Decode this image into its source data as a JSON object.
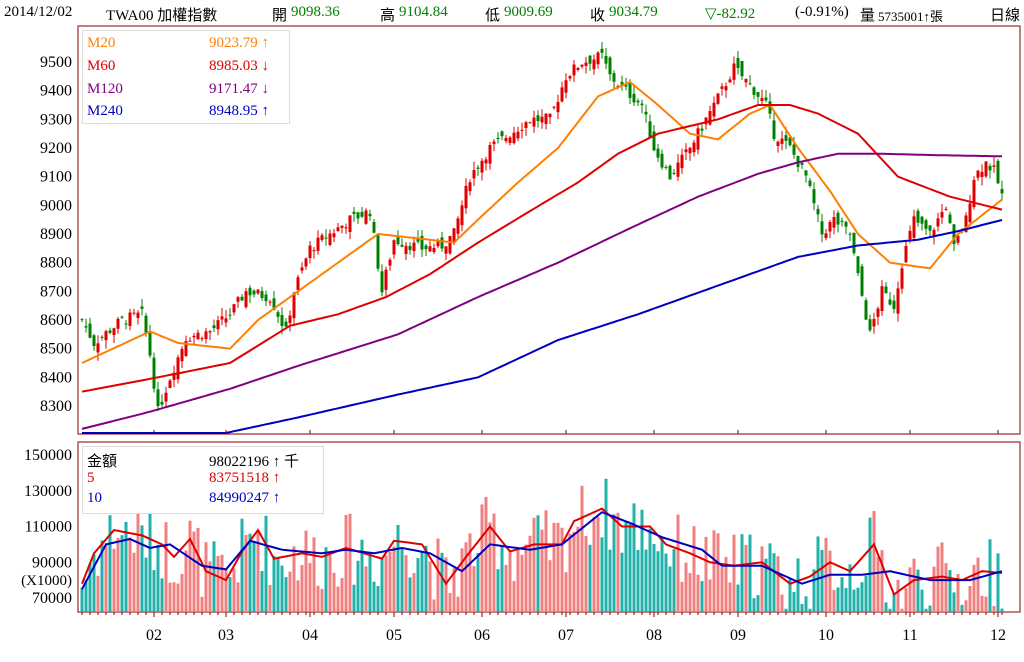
{
  "header": {
    "date": "2014/12/02",
    "symbol": "TWA00 加權指數",
    "open_label": "開",
    "open": "9098.36",
    "high_label": "高",
    "high": "9104.84",
    "low_label": "低",
    "low": "9009.69",
    "close_label": "收",
    "close": "9034.79",
    "change": "▽-82.92",
    "change_pct": "(-0.91%)",
    "volume_label": "量",
    "volume": "5735001↑張",
    "period": "日線"
  },
  "price_legend": [
    {
      "name": "M20",
      "value": "9023.79 ↑",
      "color": "#ff8000"
    },
    {
      "name": "M60",
      "value": "8985.03 ↓",
      "color": "#e00000"
    },
    {
      "name": "M120",
      "value": "9171.47 ↓",
      "color": "#800080"
    },
    {
      "name": "M240",
      "value": "8948.95 ↑",
      "color": "#0000c0"
    }
  ],
  "volume_legend": [
    {
      "name": "金額",
      "value": "98022196 ↑ 千",
      "color": "#000000"
    },
    {
      "name": "5",
      "value": "83751518 ↑",
      "color": "#e00000"
    },
    {
      "name": "10",
      "value": "84990247 ↑",
      "color": "#0000c0"
    }
  ],
  "chart_data": [
    {
      "type": "candlestick",
      "title": "TWA00 加權指數 日線",
      "days": 231,
      "ylim": [
        8200,
        9620
      ],
      "yticks": [
        "9500",
        "9400",
        "9300",
        "9200",
        "9100",
        "9000",
        "8900",
        "8800",
        "8700",
        "8600",
        "8500",
        "8400",
        "8300"
      ],
      "close_keypoints": [
        [
          0,
          8600
        ],
        [
          3,
          8520
        ],
        [
          10,
          8600
        ],
        [
          15,
          8620
        ],
        [
          17,
          8480
        ],
        [
          19,
          8280
        ],
        [
          22,
          8400
        ],
        [
          26,
          8540
        ],
        [
          32,
          8560
        ],
        [
          37,
          8620
        ],
        [
          41,
          8700
        ],
        [
          47,
          8680
        ],
        [
          51,
          8560
        ],
        [
          53,
          8700
        ],
        [
          57,
          8850
        ],
        [
          62,
          8900
        ],
        [
          67,
          8950
        ],
        [
          72,
          8980
        ],
        [
          75,
          8700
        ],
        [
          78,
          8880
        ],
        [
          85,
          8850
        ],
        [
          90,
          8860
        ],
        [
          93,
          8900
        ],
        [
          97,
          9100
        ],
        [
          102,
          9200
        ],
        [
          107,
          9250
        ],
        [
          112,
          9300
        ],
        [
          117,
          9300
        ],
        [
          121,
          9450
        ],
        [
          125,
          9500
        ],
        [
          130,
          9520
        ],
        [
          132,
          9450
        ],
        [
          136,
          9400
        ],
        [
          140,
          9350
        ],
        [
          143,
          9200
        ],
        [
          147,
          9100
        ],
        [
          152,
          9200
        ],
        [
          156,
          9300
        ],
        [
          160,
          9400
        ],
        [
          163,
          9480
        ],
        [
          167,
          9420
        ],
        [
          171,
          9350
        ],
        [
          173,
          9250
        ],
        [
          177,
          9200
        ],
        [
          181,
          9100
        ],
        [
          185,
          8900
        ],
        [
          188,
          8950
        ],
        [
          192,
          8900
        ],
        [
          194,
          8750
        ],
        [
          197,
          8550
        ],
        [
          200,
          8700
        ],
        [
          203,
          8650
        ],
        [
          205,
          8800
        ],
        [
          208,
          8950
        ],
        [
          212,
          8900
        ],
        [
          216,
          9000
        ],
        [
          218,
          8850
        ],
        [
          221,
          8950
        ],
        [
          223,
          9100
        ],
        [
          226,
          9150
        ],
        [
          228,
          9120
        ],
        [
          230,
          9035
        ]
      ],
      "series": [
        {
          "name": "M20",
          "color": "#ff8000",
          "points": [
            [
              0,
              8450
            ],
            [
              17,
              8560
            ],
            [
              24,
              8520
            ],
            [
              37,
              8500
            ],
            [
              44,
              8600
            ],
            [
              54,
              8700
            ],
            [
              64,
              8800
            ],
            [
              74,
              8900
            ],
            [
              87,
              8880
            ],
            [
              93,
              8870
            ],
            [
              99,
              8950
            ],
            [
              109,
              9080
            ],
            [
              119,
              9200
            ],
            [
              129,
              9380
            ],
            [
              137,
              9430
            ],
            [
              144,
              9350
            ],
            [
              152,
              9250
            ],
            [
              159,
              9230
            ],
            [
              167,
              9320
            ],
            [
              172,
              9350
            ],
            [
              179,
              9200
            ],
            [
              187,
              9050
            ],
            [
              194,
              8900
            ],
            [
              202,
              8800
            ],
            [
              212,
              8780
            ],
            [
              219,
              8900
            ],
            [
              230,
              9020
            ]
          ]
        },
        {
          "name": "M60",
          "color": "#e00000",
          "points": [
            [
              0,
              8350
            ],
            [
              19,
              8400
            ],
            [
              37,
              8450
            ],
            [
              52,
              8580
            ],
            [
              64,
              8620
            ],
            [
              76,
              8680
            ],
            [
              87,
              8760
            ],
            [
              99,
              8870
            ],
            [
              112,
              8980
            ],
            [
              124,
              9080
            ],
            [
              134,
              9180
            ],
            [
              144,
              9250
            ],
            [
              159,
              9300
            ],
            [
              169,
              9350
            ],
            [
              177,
              9350
            ],
            [
              184,
              9320
            ],
            [
              194,
              9250
            ],
            [
              204,
              9100
            ],
            [
              217,
              9030
            ],
            [
              230,
              8985
            ]
          ]
        },
        {
          "name": "M120",
          "color": "#800080",
          "points": [
            [
              0,
              8220
            ],
            [
              17,
              8280
            ],
            [
              37,
              8360
            ],
            [
              54,
              8440
            ],
            [
              79,
              8550
            ],
            [
              99,
              8680
            ],
            [
              119,
              8800
            ],
            [
              137,
              8920
            ],
            [
              154,
              9030
            ],
            [
              169,
              9110
            ],
            [
              179,
              9150
            ],
            [
              189,
              9180
            ],
            [
              199,
              9180
            ],
            [
              214,
              9175
            ],
            [
              230,
              9171
            ]
          ]
        },
        {
          "name": "M240",
          "color": "#0000c0",
          "points": [
            [
              0,
              8130
            ],
            [
              34,
              8200
            ],
            [
              54,
              8260
            ],
            [
              79,
              8340
            ],
            [
              99,
              8400
            ],
            [
              119,
              8530
            ],
            [
              139,
              8620
            ],
            [
              159,
              8720
            ],
            [
              179,
              8820
            ],
            [
              194,
              8860
            ],
            [
              209,
              8880
            ],
            [
              219,
              8910
            ],
            [
              230,
              8949
            ]
          ]
        }
      ],
      "xticks": [
        {
          "label": "02",
          "day": 18
        },
        {
          "label": "03",
          "day": 36
        },
        {
          "label": "04",
          "day": 57
        },
        {
          "label": "05",
          "day": 78
        },
        {
          "label": "06",
          "day": 100
        },
        {
          "label": "07",
          "day": 121
        },
        {
          "label": "08",
          "day": 143
        },
        {
          "label": "09",
          "day": 164
        },
        {
          "label": "10",
          "day": 186
        },
        {
          "label": "11",
          "day": 207
        },
        {
          "label": "12",
          "day": 229
        }
      ]
    },
    {
      "type": "bar",
      "title": "金額 (X1000)",
      "ylim": [
        62000,
        157000
      ],
      "yticks": [
        "150000",
        "130000",
        "110000",
        "90000",
        "70000"
      ],
      "unit_label": "(X1000)",
      "series": [
        {
          "name": "5",
          "color": "#e00000",
          "points": [
            [
              0,
              78000
            ],
            [
              3,
              95000
            ],
            [
              8,
              108000
            ],
            [
              15,
              105000
            ],
            [
              20,
              100000
            ],
            [
              23,
              93000
            ],
            [
              27,
              103000
            ],
            [
              31,
              85000
            ],
            [
              36,
              80000
            ],
            [
              40,
              96000
            ],
            [
              44,
              108000
            ],
            [
              48,
              92000
            ],
            [
              55,
              95000
            ],
            [
              60,
              93000
            ],
            [
              66,
              98000
            ],
            [
              75,
              92000
            ],
            [
              78,
              102000
            ],
            [
              85,
              100000
            ],
            [
              91,
              78000
            ],
            [
              96,
              93000
            ],
            [
              102,
              110000
            ],
            [
              107,
              96000
            ],
            [
              113,
              100000
            ],
            [
              120,
              100000
            ],
            [
              123,
              113000
            ],
            [
              130,
              120000
            ],
            [
              135,
              110000
            ],
            [
              142,
              110000
            ],
            [
              146,
              100000
            ],
            [
              152,
              95000
            ],
            [
              157,
              90000
            ],
            [
              163,
              88000
            ],
            [
              170,
              90000
            ],
            [
              177,
              78000
            ],
            [
              182,
              82000
            ],
            [
              187,
              90000
            ],
            [
              192,
              85000
            ],
            [
              198,
              100000
            ],
            [
              203,
              72000
            ],
            [
              208,
              80000
            ],
            [
              215,
              82000
            ],
            [
              220,
              80000
            ],
            [
              225,
              85000
            ],
            [
              230,
              84000
            ]
          ]
        },
        {
          "name": "10",
          "color": "#0000c0",
          "points": [
            [
              0,
              75000
            ],
            [
              6,
              100000
            ],
            [
              12,
              103000
            ],
            [
              17,
              98000
            ],
            [
              22,
              100000
            ],
            [
              30,
              88000
            ],
            [
              36,
              86000
            ],
            [
              42,
              102000
            ],
            [
              50,
              97000
            ],
            [
              60,
              95000
            ],
            [
              66,
              97000
            ],
            [
              73,
              95000
            ],
            [
              80,
              98000
            ],
            [
              87,
              95000
            ],
            [
              95,
              85000
            ],
            [
              102,
              100000
            ],
            [
              112,
              97000
            ],
            [
              120,
              100000
            ],
            [
              130,
              118000
            ],
            [
              137,
              112000
            ],
            [
              145,
              104000
            ],
            [
              155,
              97000
            ],
            [
              160,
              88000
            ],
            [
              170,
              88000
            ],
            [
              180,
              78000
            ],
            [
              187,
              83000
            ],
            [
              195,
              83000
            ],
            [
              202,
              85000
            ],
            [
              212,
              80000
            ],
            [
              222,
              80000
            ],
            [
              230,
              85000
            ]
          ]
        }
      ]
    }
  ]
}
